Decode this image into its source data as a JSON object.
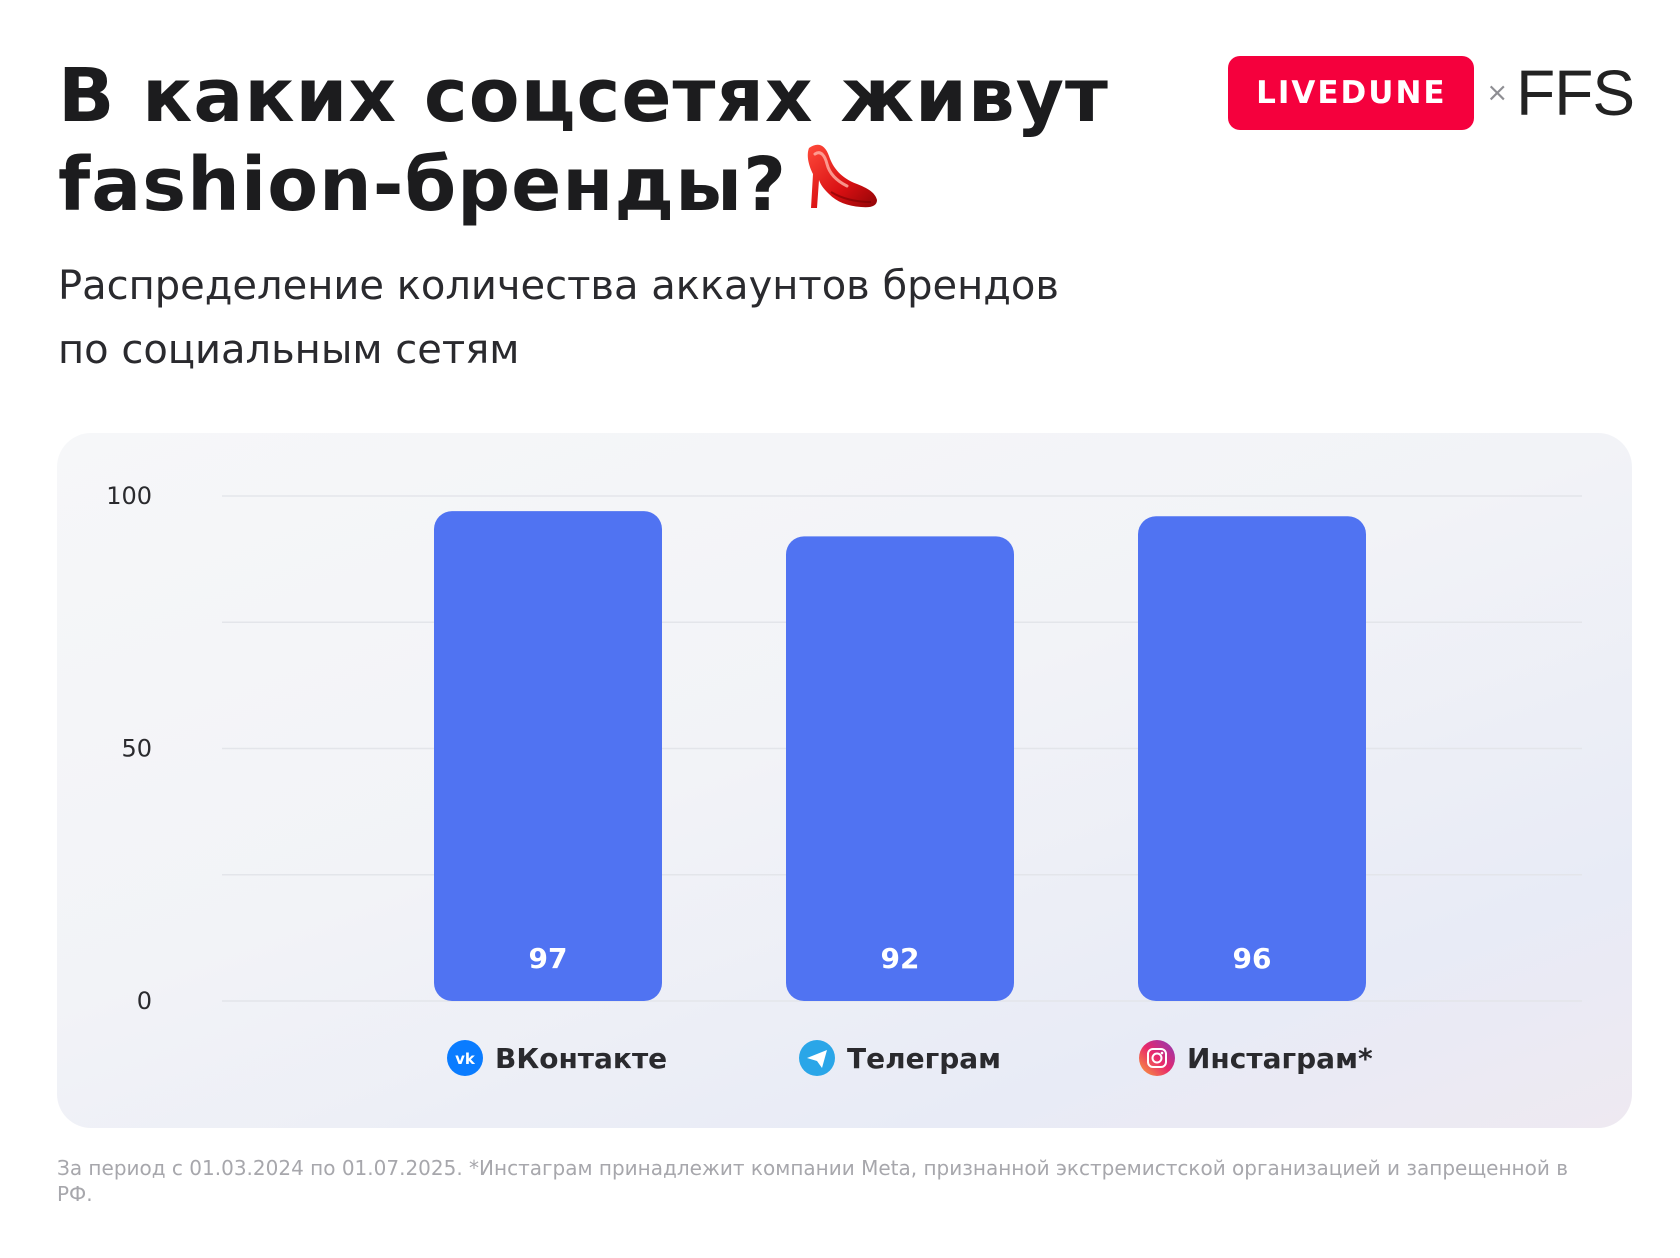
{
  "header": {
    "title_line1": "В каких соцсетях живут",
    "title_line2": "fashion-бренды?",
    "title_emoji_icon": "high-heel-shoe-icon",
    "subtitle_line1": "Распределение количества аккаунтов брендов",
    "subtitle_line2": "по социальным сетям"
  },
  "logos": {
    "livedune": "LIVEDUNE",
    "separator": "×",
    "ffs": "FFS",
    "livedune_color": "#f5003d"
  },
  "chart_data": {
    "type": "bar",
    "categories": [
      "ВКонтакте",
      "Телеграм",
      "Инстаграм*"
    ],
    "category_icons": [
      "vk-icon",
      "telegram-icon",
      "instagram-icon"
    ],
    "values": [
      97,
      92,
      96
    ],
    "data_labels": [
      "97",
      "92",
      "96"
    ],
    "ylim": [
      0,
      100
    ],
    "yticks": [
      0,
      50,
      100
    ],
    "ytick_labels": [
      "0",
      "50",
      "100"
    ],
    "grid": true,
    "bar_color": "#5073f2",
    "title": "",
    "xlabel": "",
    "ylabel": ""
  },
  "footnote": "За период с 01.03.2024 по 01.07.2025. *Инстаграм принадлежит компании Meta, признанной экстремистской организацией и запрещенной в РФ."
}
